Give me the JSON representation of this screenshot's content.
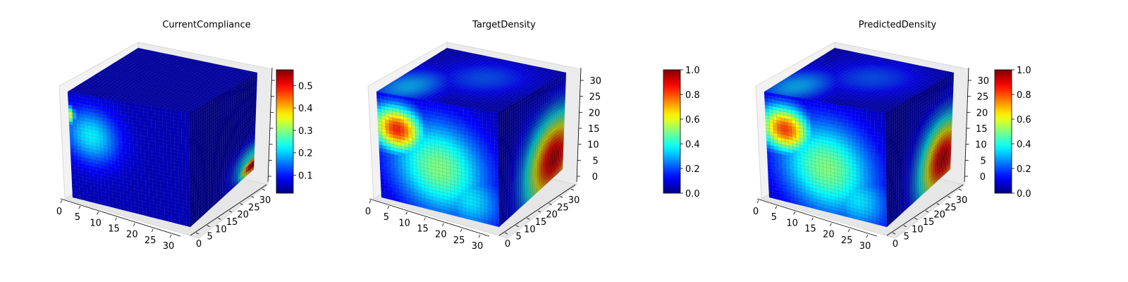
{
  "chart_data": [
    {
      "type": "heatmap",
      "title": "CurrentCompliance",
      "projection": "3d voxel cube",
      "colormap": "jet",
      "x_ticks": [
        "0",
        "5",
        "10",
        "15",
        "20",
        "25",
        "30"
      ],
      "y_ticks": [
        "0",
        "5",
        "10",
        "15",
        "20",
        "25",
        "30"
      ],
      "z_ticks": [],
      "colorbar": {
        "min": 0.02,
        "max": 0.57,
        "ticks": [
          "0.1",
          "0.2",
          "0.3",
          "0.4",
          "0.5"
        ],
        "tick_values": [
          0.1,
          0.2,
          0.3,
          0.4,
          0.5
        ]
      },
      "front_face_hotspots": [
        {
          "u": 0.18,
          "v": 0.62,
          "sigma_u": 0.16,
          "sigma_v": 0.18,
          "value": 0.22
        },
        {
          "u": 0.01,
          "v": 0.78,
          "sigma_u": 0.03,
          "sigma_v": 0.06,
          "value": 0.34
        }
      ],
      "right_face_hotspots": [
        {
          "u": 0.98,
          "v": 0.06,
          "sigma_u": 0.14,
          "sigma_v": 0.06,
          "value": 0.57
        },
        {
          "u": 0.95,
          "v": 0.12,
          "sigma_u": 0.2,
          "sigma_v": 0.12,
          "value": 0.25
        }
      ],
      "top_face_hotspots": [],
      "base_value": 0.05
    },
    {
      "type": "heatmap",
      "title": "TargetDensity",
      "projection": "3d voxel cube",
      "colormap": "jet",
      "x_ticks": [
        "0",
        "5",
        "10",
        "15",
        "20",
        "25",
        "30"
      ],
      "y_ticks": [
        "0",
        "5",
        "10",
        "15",
        "20",
        "25",
        "30"
      ],
      "z_ticks": [
        "0",
        "5",
        "10",
        "15",
        "20",
        "25",
        "30"
      ],
      "colorbar": {
        "min": 0.0,
        "max": 1.0,
        "ticks": [
          "0.0",
          "0.2",
          "0.4",
          "0.6",
          "0.8",
          "1.0"
        ],
        "tick_values": [
          0,
          0.2,
          0.4,
          0.6,
          0.8,
          1.0
        ]
      },
      "front_face_hotspots": [
        {
          "u": 0.16,
          "v": 0.68,
          "sigma_u": 0.15,
          "sigma_v": 0.15,
          "value": 0.85
        },
        {
          "u": 0.5,
          "v": 0.4,
          "sigma_u": 0.28,
          "sigma_v": 0.3,
          "value": 0.5
        },
        {
          "u": 0.75,
          "v": 0.18,
          "sigma_u": 0.2,
          "sigma_v": 0.2,
          "value": 0.35
        }
      ],
      "right_face_hotspots": [
        {
          "u": 0.85,
          "v": 0.2,
          "sigma_u": 0.3,
          "sigma_v": 0.3,
          "value": 0.95
        }
      ],
      "top_face_hotspots": [
        {
          "u": 0.15,
          "v": 0.2,
          "sigma_u": 0.18,
          "sigma_v": 0.25,
          "value": 0.3
        },
        {
          "u": 0.55,
          "v": 0.6,
          "sigma_u": 0.25,
          "sigma_v": 0.25,
          "value": 0.2
        }
      ],
      "base_value": 0.05
    },
    {
      "type": "heatmap",
      "title": "PredictedDensity",
      "projection": "3d voxel cube",
      "colormap": "jet",
      "x_ticks": [
        "0",
        "5",
        "10",
        "15",
        "20",
        "25",
        "30"
      ],
      "y_ticks": [
        "0",
        "5",
        "10",
        "15",
        "20",
        "25",
        "30"
      ],
      "z_ticks": [
        "0",
        "5",
        "10",
        "15",
        "20",
        "25",
        "30"
      ],
      "colorbar": {
        "min": 0.0,
        "max": 1.0,
        "ticks": [
          "0.0",
          "0.2",
          "0.4",
          "0.6",
          "0.8",
          "1.0"
        ],
        "tick_values": [
          0,
          0.2,
          0.4,
          0.6,
          0.8,
          1.0
        ]
      },
      "front_face_hotspots": [
        {
          "u": 0.16,
          "v": 0.68,
          "sigma_u": 0.15,
          "sigma_v": 0.15,
          "value": 0.82
        },
        {
          "u": 0.5,
          "v": 0.4,
          "sigma_u": 0.28,
          "sigma_v": 0.3,
          "value": 0.5
        },
        {
          "u": 0.75,
          "v": 0.18,
          "sigma_u": 0.2,
          "sigma_v": 0.2,
          "value": 0.35
        }
      ],
      "right_face_hotspots": [
        {
          "u": 0.88,
          "v": 0.18,
          "sigma_u": 0.26,
          "sigma_v": 0.28,
          "value": 0.95
        }
      ],
      "top_face_hotspots": [
        {
          "u": 0.15,
          "v": 0.2,
          "sigma_u": 0.18,
          "sigma_v": 0.25,
          "value": 0.3
        },
        {
          "u": 0.55,
          "v": 0.6,
          "sigma_u": 0.25,
          "sigma_v": 0.25,
          "value": 0.2
        }
      ],
      "base_value": 0.05
    }
  ],
  "colors": {
    "pane_fill": "#f2f2f2",
    "pane_edge": "#d8d8d8",
    "grid": "#e4e4e4",
    "axis": "#000000"
  }
}
